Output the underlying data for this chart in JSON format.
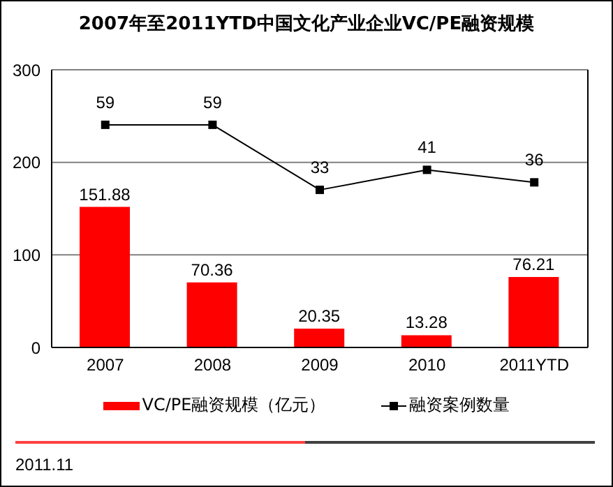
{
  "chart_data": {
    "type": "bar",
    "title": "2007年至2011YTD中国文化产业企业VC/PE融资规模",
    "categories": [
      "2007",
      "2008",
      "2009",
      "2010",
      "2011YTD"
    ],
    "series": [
      {
        "name": "VC/PE融资规模（亿元）",
        "color": "#ff0000",
        "values": [
          151.88,
          70.36,
          20.35,
          13.28,
          76.21
        ]
      },
      {
        "name": "融资案例数量",
        "type": "line",
        "axis": "y2",
        "color": "#000000",
        "marker": "square",
        "values": [
          59,
          59,
          33,
          41,
          36
        ]
      }
    ],
    "ylim": [
      0,
      300
    ],
    "yticks": [
      0,
      100,
      200,
      300
    ],
    "y2lim": [
      -30,
      81
    ],
    "grid": "y",
    "legend": "bottom",
    "data_labels": true,
    "annotations": [
      "2011.11"
    ]
  }
}
